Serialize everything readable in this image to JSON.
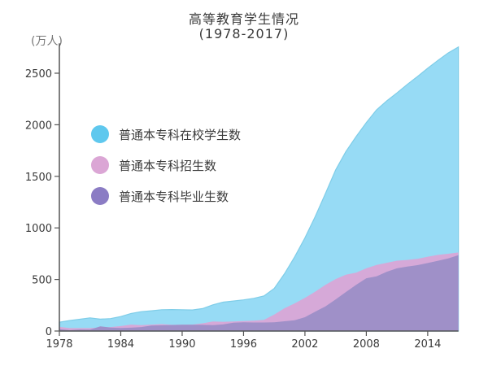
{
  "header": {
    "title": "高等教育学生情况",
    "subtitle": "(1978-2017)",
    "unit": "(万人)"
  },
  "colors": {
    "enrolled": "#97dbf5",
    "enrolled_line": "#7fcde8",
    "admitted": "#d6a9d8",
    "graduated": "#9f90c8",
    "axis": "#555555"
  },
  "legend": [
    {
      "label": "普通本专科在校学生数",
      "color": "#5fc8ee"
    },
    {
      "label": "普通本专科招生数",
      "color": "#dba6d5"
    },
    {
      "label": "普通本专科毕业生数",
      "color": "#8b7cc4"
    }
  ],
  "chart_data": {
    "type": "area",
    "title": "高等教育学生情况 (1978-2017)",
    "xlabel": "",
    "ylabel": "(万人)",
    "xlim": [
      1978,
      2017
    ],
    "ylim": [
      0,
      2750
    ],
    "x_ticks": [
      1978,
      1984,
      1990,
      1996,
      2002,
      2008,
      2014
    ],
    "y_ticks": [
      0,
      500,
      1000,
      1500,
      2000,
      2500
    ],
    "grid": false,
    "legend_position": "upper-left inside",
    "x": [
      1978,
      1979,
      1980,
      1981,
      1982,
      1983,
      1984,
      1985,
      1986,
      1987,
      1988,
      1989,
      1990,
      1991,
      1992,
      1993,
      1994,
      1995,
      1996,
      1997,
      1998,
      1999,
      2000,
      2001,
      2002,
      2003,
      2004,
      2005,
      2006,
      2007,
      2008,
      2009,
      2010,
      2011,
      2012,
      2013,
      2014,
      2015,
      2016,
      2017
    ],
    "series": [
      {
        "name": "普通本专科在校学生数",
        "values": [
          86,
          102,
          114,
          128,
          115,
          121,
          140,
          170,
          188,
          196,
          207,
          208,
          206,
          204,
          218,
          254,
          280,
          291,
          302,
          317,
          341,
          413,
          556,
          719,
          903,
          1109,
          1333,
          1562,
          1739,
          1885,
          2021,
          2145,
          2232,
          2309,
          2391,
          2468,
          2548,
          2625,
          2696,
          2754
        ]
      },
      {
        "name": "普通本专科招生数",
        "values": [
          40,
          28,
          28,
          28,
          32,
          39,
          48,
          62,
          57,
          62,
          67,
          60,
          61,
          62,
          75,
          92,
          90,
          93,
          97,
          100,
          108,
          160,
          221,
          268,
          321,
          382,
          447,
          504,
          546,
          566,
          608,
          640,
          662,
          682,
          689,
          700,
          721,
          738,
          749,
          762
        ]
      },
      {
        "name": "普通本专科毕业生数",
        "values": [
          17,
          9,
          15,
          14,
          46,
          34,
          29,
          32,
          39,
          53,
          55,
          58,
          61,
          61,
          60,
          57,
          64,
          81,
          84,
          83,
          83,
          85,
          95,
          104,
          134,
          188,
          239,
          307,
          378,
          448,
          512,
          531,
          575,
          608,
          625,
          639,
          659,
          681,
          704,
          735
        ]
      }
    ]
  }
}
